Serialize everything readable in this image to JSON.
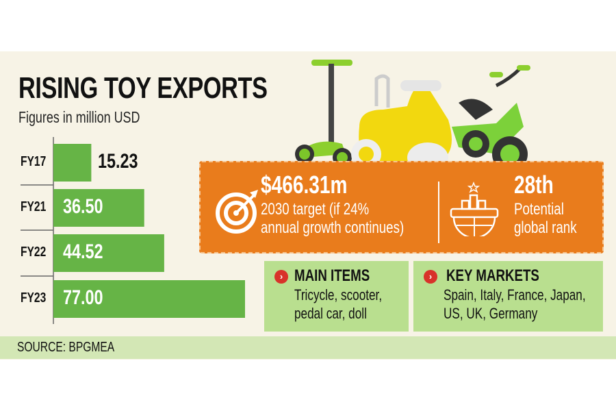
{
  "header": {
    "title": "RISING TOY EXPORTS",
    "subtitle": "Figures in million USD"
  },
  "chart_data": {
    "type": "bar",
    "orientation": "horizontal",
    "categories": [
      "FY17",
      "FY21",
      "FY22",
      "FY23"
    ],
    "values": [
      15.23,
      36.5,
      44.52,
      77.0
    ],
    "value_labels": [
      "15.23",
      "36.50",
      "44.52",
      "77.00"
    ],
    "title": "RISING TOY EXPORTS",
    "subtitle": "Figures in million USD",
    "xlim": [
      0,
      77
    ],
    "grid": false,
    "bar_color": "#66b446"
  },
  "highlights": {
    "target": {
      "value": "$466.31m",
      "caption_line1": "2030 target (if 24%",
      "caption_line2": "annual growth continues)",
      "icon": "target-arrow-icon"
    },
    "rank": {
      "value": "28th",
      "caption_line1": "Potential",
      "caption_line2": "global rank",
      "icon": "globe-podium-icon"
    }
  },
  "main_items": {
    "title": "MAIN ITEMS",
    "line1": "Tricycle, scooter,",
    "line2": "pedal car, doll",
    "icon": "chevron-right-circle-icon"
  },
  "key_markets": {
    "title": "KEY MARKETS",
    "line1": "Spain, Italy, France, Japan,",
    "line2": "US, UK, Germany",
    "icon": "chevron-right-circle-icon"
  },
  "arrow_glyph": "›",
  "source": "SOURCE: BPGMEA",
  "colors": {
    "orange": "#e97c1c",
    "green_bar": "#66b446",
    "light_green": "#b9df8f",
    "background": "#f7f3e6",
    "bullet_red": "#d8322a"
  }
}
